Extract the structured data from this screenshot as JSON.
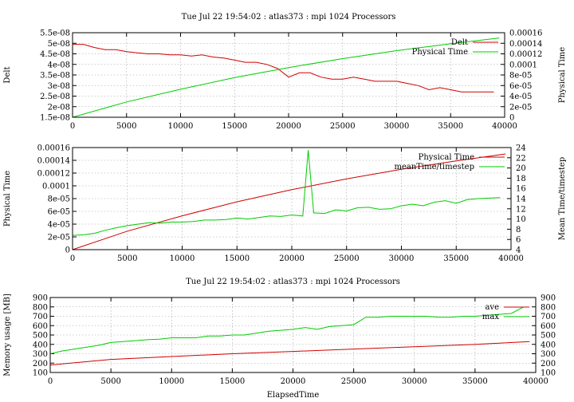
{
  "chart_data": [
    {
      "type": "line",
      "title": "Tue Jul 22 19:54:02 : atlas373 : mpi 1024 Processors",
      "xlabel": "",
      "ylabel": "Delt",
      "y2label": "Physical Time",
      "xlim": [
        0,
        40000
      ],
      "ylim": [
        1.5e-08,
        5.5e-08
      ],
      "y2lim": [
        0,
        0.00016
      ],
      "x_ticks": [
        0,
        5000,
        10000,
        15000,
        20000,
        25000,
        30000,
        35000,
        40000
      ],
      "y_ticks": [
        1.5e-08,
        2e-08,
        2.5e-08,
        3e-08,
        3.5e-08,
        4e-08,
        4.5e-08,
        5e-08,
        5.5e-08
      ],
      "y_tick_labels": [
        "1.5e-08",
        "2e-08",
        "2.5e-08",
        "3e-08",
        "3.5e-08",
        "4e-08",
        "4.5e-08",
        "5e-08",
        "5.5e-08"
      ],
      "y2_ticks": [
        0,
        2e-05,
        4e-05,
        6e-05,
        8e-05,
        0.0001,
        0.00012,
        0.00014,
        0.00016
      ],
      "y2_tick_labels": [
        "0",
        "2e-05",
        "4e-05",
        "6e-05",
        "8e-05",
        "0.0001",
        "0.00012",
        "0.00014",
        "0.00016"
      ],
      "grid": true,
      "legend": "top-right",
      "series": [
        {
          "name": "Delt",
          "axis": "y",
          "color": "#d00000",
          "x": [
            0,
            1000,
            2000,
            3000,
            4000,
            5000,
            6000,
            7000,
            8000,
            9000,
            10000,
            11000,
            12000,
            13000,
            14000,
            15000,
            16000,
            17000,
            18000,
            19000,
            20000,
            21000,
            22000,
            23000,
            24000,
            25000,
            26000,
            27000,
            28000,
            29000,
            30000,
            31000,
            32000,
            33000,
            34000,
            35000,
            36000,
            37000,
            38000,
            39000
          ],
          "y": [
            4.95e-08,
            4.95e-08,
            4.8e-08,
            4.7e-08,
            4.7e-08,
            4.6e-08,
            4.55e-08,
            4.5e-08,
            4.5e-08,
            4.45e-08,
            4.45e-08,
            4.4e-08,
            4.45e-08,
            4.35e-08,
            4.3e-08,
            4.2e-08,
            4.1e-08,
            4.1e-08,
            4e-08,
            3.8e-08,
            3.4e-08,
            3.6e-08,
            3.6e-08,
            3.4e-08,
            3.3e-08,
            3.3e-08,
            3.4e-08,
            3.3e-08,
            3.2e-08,
            3.2e-08,
            3.2e-08,
            3.1e-08,
            3e-08,
            2.8e-08,
            2.9e-08,
            2.8e-08,
            2.7e-08,
            2.7e-08,
            2.7e-08,
            2.7e-08
          ]
        },
        {
          "name": "Physical Time",
          "axis": "y2",
          "color": "#00cc00",
          "x": [
            0,
            5000,
            10000,
            15000,
            20000,
            25000,
            30000,
            35000,
            39500
          ],
          "y": [
            0,
            2.9e-05,
            5.3e-05,
            7.5e-05,
            9.4e-05,
            0.000111,
            0.000126,
            0.000139,
            0.00015
          ]
        }
      ]
    },
    {
      "type": "line",
      "title": "",
      "xlabel": "",
      "ylabel": "Physical Time",
      "y2label": "Mean Time/timestep",
      "xlim": [
        0,
        40000
      ],
      "ylim": [
        0,
        0.00016
      ],
      "y2lim": [
        4,
        24
      ],
      "x_ticks": [
        0,
        5000,
        10000,
        15000,
        20000,
        25000,
        30000,
        35000,
        40000
      ],
      "y_ticks": [
        0,
        2e-05,
        4e-05,
        6e-05,
        8e-05,
        0.0001,
        0.00012,
        0.00014,
        0.00016
      ],
      "y_tick_labels": [
        "0",
        "2e-05",
        "4e-05",
        "6e-05",
        "8e-05",
        "0.0001",
        "0.00012",
        "0.00014",
        "0.00016"
      ],
      "y2_ticks": [
        4,
        6,
        8,
        10,
        12,
        14,
        16,
        18,
        20,
        22,
        24
      ],
      "grid": true,
      "legend": "top-right",
      "series": [
        {
          "name": "Physical Time",
          "axis": "y",
          "color": "#d00000",
          "x": [
            0,
            5000,
            10000,
            15000,
            20000,
            25000,
            30000,
            35000,
            39500
          ],
          "y": [
            0,
            2.9e-05,
            5.3e-05,
            7.5e-05,
            9.4e-05,
            0.000111,
            0.000126,
            0.000139,
            0.00015
          ]
        },
        {
          "name": "meanTime/timestep",
          "axis": "y2",
          "color": "#00cc00",
          "x": [
            0,
            1000,
            2000,
            3000,
            4000,
            5000,
            6000,
            7000,
            8000,
            9000,
            10000,
            11000,
            12000,
            13000,
            14000,
            15000,
            16000,
            17000,
            18000,
            19000,
            20000,
            21000,
            21500,
            22000,
            23000,
            24000,
            25000,
            26000,
            27000,
            28000,
            29000,
            30000,
            31000,
            32000,
            33000,
            34000,
            35000,
            36000,
            37000,
            38000,
            39000
          ],
          "y": [
            6.8,
            6.9,
            7.2,
            7.8,
            8.3,
            8.7,
            9.0,
            9.3,
            9.2,
            9.4,
            9.4,
            9.5,
            9.8,
            9.8,
            9.9,
            10.2,
            10.0,
            10.3,
            10.6,
            10.5,
            10.8,
            10.6,
            23.5,
            11.2,
            11.1,
            11.8,
            11.6,
            12.2,
            12.3,
            11.9,
            12.0,
            12.6,
            12.9,
            12.6,
            13.3,
            13.6,
            13.1,
            13.8,
            14.0,
            14.1,
            14.2
          ]
        }
      ]
    },
    {
      "type": "line",
      "title": "Tue Jul 22 19:54:02 : atlas373 : mpi 1024 Processors",
      "xlabel": "ElapsedTime",
      "ylabel": "Memory usage [MB]",
      "xlim": [
        0,
        40000
      ],
      "ylim": [
        100,
        900
      ],
      "y2lim": [
        100,
        900
      ],
      "x_ticks": [
        0,
        5000,
        10000,
        15000,
        20000,
        25000,
        30000,
        35000,
        40000
      ],
      "y_ticks": [
        100,
        200,
        300,
        400,
        500,
        600,
        700,
        800,
        900
      ],
      "y2_ticks": [
        100,
        200,
        300,
        400,
        500,
        600,
        700,
        800,
        900
      ],
      "grid": true,
      "legend": "top-right",
      "series": [
        {
          "name": "ave",
          "color": "#d00000",
          "x": [
            0,
            5000,
            10000,
            15000,
            20000,
            25000,
            30000,
            35000,
            39500
          ],
          "y": [
            180,
            240,
            270,
            300,
            325,
            350,
            375,
            400,
            430
          ]
        },
        {
          "name": "max",
          "color": "#00cc00",
          "x": [
            0,
            1000,
            2000,
            3000,
            4000,
            5000,
            6000,
            7000,
            8000,
            9000,
            10000,
            11000,
            12000,
            13000,
            14000,
            15000,
            16000,
            17000,
            18000,
            19000,
            20000,
            21000,
            22000,
            23000,
            24000,
            25000,
            26000,
            27000,
            28000,
            29000,
            30000,
            31000,
            32000,
            33000,
            34000,
            35000,
            36000,
            37000,
            38000,
            39000
          ],
          "y": [
            300,
            330,
            350,
            370,
            390,
            420,
            430,
            440,
            450,
            455,
            470,
            470,
            470,
            490,
            490,
            500,
            500,
            520,
            540,
            550,
            560,
            580,
            560,
            590,
            600,
            610,
            690,
            690,
            700,
            700,
            700,
            700,
            690,
            690,
            700,
            700,
            710,
            720,
            730,
            800
          ]
        }
      ]
    }
  ]
}
